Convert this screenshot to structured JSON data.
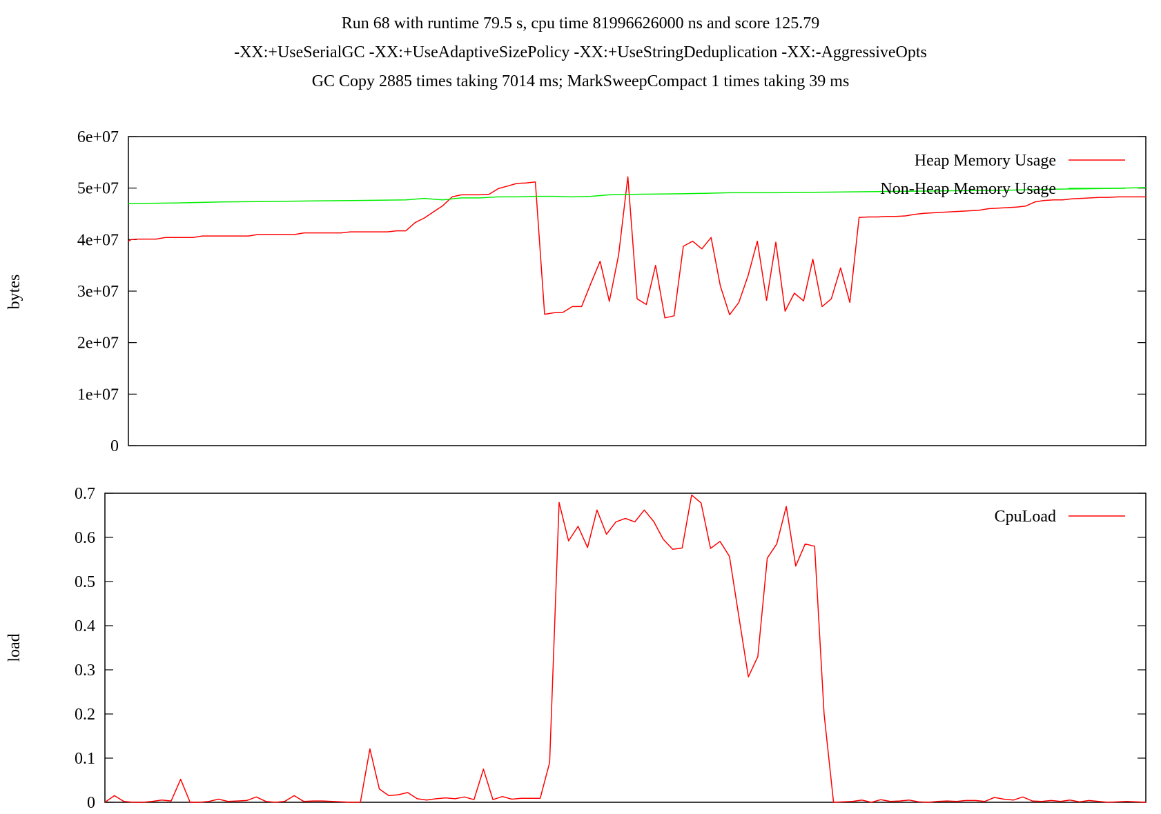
{
  "title_lines": [
    "Run 68 with runtime 79.5 s, cpu time 81996626000 ns and score 125.79",
    "-XX:+UseSerialGC -XX:+UseAdaptiveSizePolicy -XX:+UseStringDeduplication -XX:-AggressiveOpts",
    "GC Copy 2885 times taking 7014 ms; MarkSweepCompact 1 times taking 39 ms"
  ],
  "chart_data": [
    {
      "type": "line",
      "ylabel": "bytes",
      "ylim": [
        0,
        60000000
      ],
      "yticks": [
        "0",
        "1e+07",
        "2e+07",
        "3e+07",
        "4e+07",
        "5e+07",
        "6e+07"
      ],
      "xlim": [
        0,
        110
      ],
      "legend_position": "top-right",
      "grid": false,
      "series": [
        {
          "name": "Heap Memory Usage",
          "color": "#ff0000",
          "x": [
            0,
            0.3,
            1,
            2,
            3,
            4,
            5,
            6,
            7,
            8,
            9,
            10,
            11,
            12,
            13,
            14,
            15,
            16,
            17,
            18,
            19,
            20,
            21,
            22,
            23,
            24,
            25,
            26,
            27,
            28,
            29,
            30,
            31,
            32,
            33,
            34,
            35,
            36,
            37,
            38,
            39,
            40,
            41,
            42,
            43,
            44,
            45,
            46,
            47,
            48,
            49,
            50,
            51,
            52,
            53,
            54,
            55,
            56,
            57,
            58,
            59,
            60,
            61,
            62,
            63,
            64,
            65,
            66,
            67,
            68,
            69,
            70,
            71,
            72,
            73,
            74,
            75,
            76,
            77,
            78,
            79,
            80,
            81,
            82,
            83,
            84,
            85,
            86,
            87,
            88,
            89,
            90,
            91,
            92,
            93,
            94,
            95,
            96,
            97,
            98,
            99,
            100,
            101,
            102,
            103,
            104,
            105,
            106,
            107,
            108,
            109,
            110
          ],
          "y": [
            39700000,
            40000000,
            40100000,
            40100000,
            40100000,
            40400000,
            40400000,
            40400000,
            40400000,
            40700000,
            40700000,
            40700000,
            40700000,
            40700000,
            40700000,
            41000000,
            41000000,
            41000000,
            41000000,
            41000000,
            41300000,
            41300000,
            41300000,
            41300000,
            41300000,
            41500000,
            41500000,
            41500000,
            41500000,
            41500000,
            41700000,
            41700000,
            43300000,
            44200000,
            45400000,
            46600000,
            48300000,
            48700000,
            48700000,
            48700000,
            48800000,
            49900000,
            50400000,
            50900000,
            51000000,
            51200000,
            25500000,
            25800000,
            25900000,
            27000000,
            27000000,
            31500000,
            35800000,
            28000000,
            37000000,
            52200000,
            28500000,
            27400000,
            35000000,
            24800000,
            25200000,
            38700000,
            39700000,
            38200000,
            40400000,
            31000000,
            25400000,
            27800000,
            33000000,
            39700000,
            28200000,
            39500000,
            26100000,
            29600000,
            28100000,
            36200000,
            27000000,
            28500000,
            34500000,
            27800000,
            44300000,
            44400000,
            44400000,
            44500000,
            44500000,
            44600000,
            44900000,
            45100000,
            45200000,
            45300000,
            45400000,
            45500000,
            45600000,
            45700000,
            46000000,
            46100000,
            46200000,
            46300000,
            46500000,
            47300000,
            47600000,
            47700000,
            47700000,
            47900000,
            48000000,
            48100000,
            48200000,
            48200000,
            48300000,
            48300000,
            48300000,
            48300000
          ]
        },
        {
          "name": "Non-Heap Memory Usage",
          "color": "#00ee00",
          "x": [
            0,
            5,
            10,
            15,
            20,
            25,
            30,
            32,
            34,
            36,
            38,
            40,
            42,
            44,
            46,
            48,
            50,
            52,
            55,
            60,
            65,
            70,
            75,
            80,
            85,
            90,
            95,
            100,
            105,
            110
          ],
          "y": [
            47000000,
            47100000,
            47300000,
            47400000,
            47500000,
            47600000,
            47700000,
            48000000,
            47700000,
            48100000,
            48100000,
            48300000,
            48300000,
            48400000,
            48400000,
            48300000,
            48400000,
            48700000,
            48800000,
            48900000,
            49100000,
            49100000,
            49200000,
            49300000,
            49400000,
            49500000,
            49600000,
            49800000,
            49900000,
            50100000
          ]
        }
      ]
    },
    {
      "type": "line",
      "ylabel": "load",
      "ylim": [
        0,
        0.7
      ],
      "yticks": [
        "0",
        "0.1",
        "0.2",
        "0.3",
        "0.4",
        "0.5",
        "0.6",
        "0.7"
      ],
      "xlim": [
        0,
        110
      ],
      "legend_position": "top-right",
      "grid": false,
      "series": [
        {
          "name": "CpuLoad",
          "color": "#ff0000",
          "x": [
            0,
            1,
            2,
            3,
            4,
            5,
            6,
            7,
            8,
            9,
            10,
            11,
            12,
            13,
            14,
            15,
            16,
            17,
            18,
            19,
            20,
            21,
            22,
            23,
            24,
            25,
            26,
            27,
            28,
            29,
            30,
            31,
            32,
            33,
            34,
            35,
            36,
            37,
            38,
            39,
            40,
            41,
            42,
            43,
            44,
            45,
            46,
            47,
            48,
            49,
            50,
            51,
            52,
            53,
            54,
            55,
            56,
            57,
            58,
            59,
            60,
            61,
            62,
            63,
            64,
            65,
            66,
            67,
            68,
            69,
            70,
            71,
            72,
            73,
            74,
            75,
            76,
            77,
            78,
            79,
            80,
            81,
            82,
            83,
            84,
            85,
            86,
            87,
            88,
            89,
            90,
            91,
            92,
            93,
            94,
            95,
            96,
            97,
            98,
            99,
            100,
            101,
            102,
            103,
            104,
            105,
            106,
            107,
            108,
            109,
            110
          ],
          "y": [
            0,
            0.015,
            0.002,
            0,
            0,
            0.002,
            0.005,
            0.003,
            0.052,
            0,
            0,
            0.002,
            0.007,
            0.002,
            0.003,
            0.004,
            0.012,
            0.002,
            0,
            0.002,
            0.015,
            0.002,
            0.003,
            0.003,
            0.002,
            0.001,
            0,
            0,
            0.121,
            0.03,
            0.015,
            0.017,
            0.022,
            0.008,
            0.005,
            0.008,
            0.01,
            0.008,
            0.012,
            0.006,
            0.075,
            0.006,
            0.013,
            0.007,
            0.009,
            0.009,
            0.009,
            0.09,
            0.679,
            0.592,
            0.625,
            0.577,
            0.662,
            0.607,
            0.635,
            0.643,
            0.635,
            0.662,
            0.636,
            0.596,
            0.573,
            0.576,
            0.696,
            0.678,
            0.575,
            0.591,
            0.557,
            0.42,
            0.284,
            0.33,
            0.553,
            0.585,
            0.67,
            0.535,
            0.585,
            0.58,
            0.2,
            0,
            0.001,
            0.002,
            0.005,
            0,
            0.006,
            0.002,
            0.003,
            0.005,
            0.001,
            0,
            0.002,
            0.003,
            0.002,
            0.004,
            0.004,
            0.002,
            0.011,
            0.007,
            0.005,
            0.012,
            0.003,
            0.002,
            0.004,
            0.002,
            0.005,
            0.001,
            0.004,
            0.002,
            0,
            0.001,
            0.002,
            0.001,
            0
          ]
        }
      ]
    }
  ]
}
